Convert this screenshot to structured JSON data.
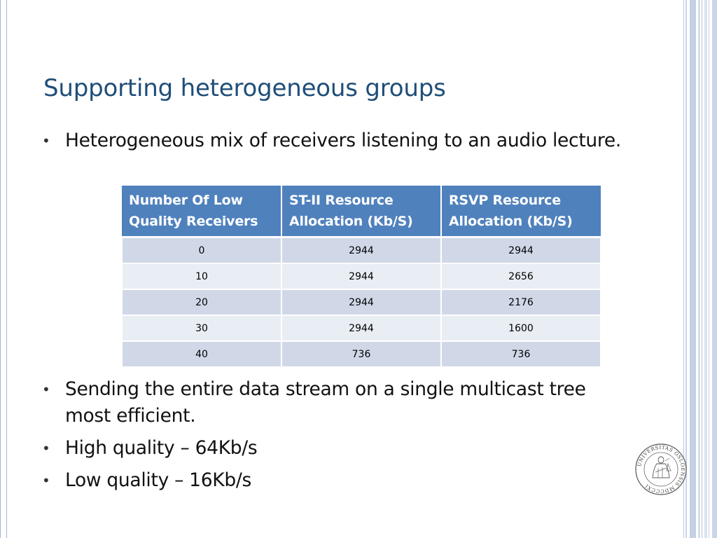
{
  "slide": {
    "title": "Supporting heterogeneous groups",
    "bullets_top": [
      "Heterogeneous mix of receivers listening to an audio lecture."
    ],
    "table": {
      "headers": [
        "Number Of Low Quality Receivers",
        "ST-II Resource Allocation (Kb/S)",
        "RSVP Resource Allocation (Kb/S)"
      ],
      "rows": [
        [
          "0",
          "2944",
          "2944"
        ],
        [
          "10",
          "2944",
          "2656"
        ],
        [
          "20",
          "2944",
          "2176"
        ],
        [
          "30",
          "2944",
          "1600"
        ],
        [
          "40",
          "736",
          "736"
        ]
      ]
    },
    "bullets_bottom": [
      "Sending the entire data stream on a single multicast tree most efficient.",
      "High quality – 64Kb/s",
      "Low quality – 16Kb/s"
    ],
    "bullet_glyph": "•",
    "seal_text": "UNIVERSITAS OSLOENSIS MDCCCXI"
  },
  "colors": {
    "title": "#1f4e79",
    "header_bg": "#4f81bd",
    "row_dark": "#d0d8e8",
    "row_light": "#e9edf4",
    "frame": "#9fb3d3"
  },
  "icons": {
    "logo": "university-of-oslo-seal"
  }
}
